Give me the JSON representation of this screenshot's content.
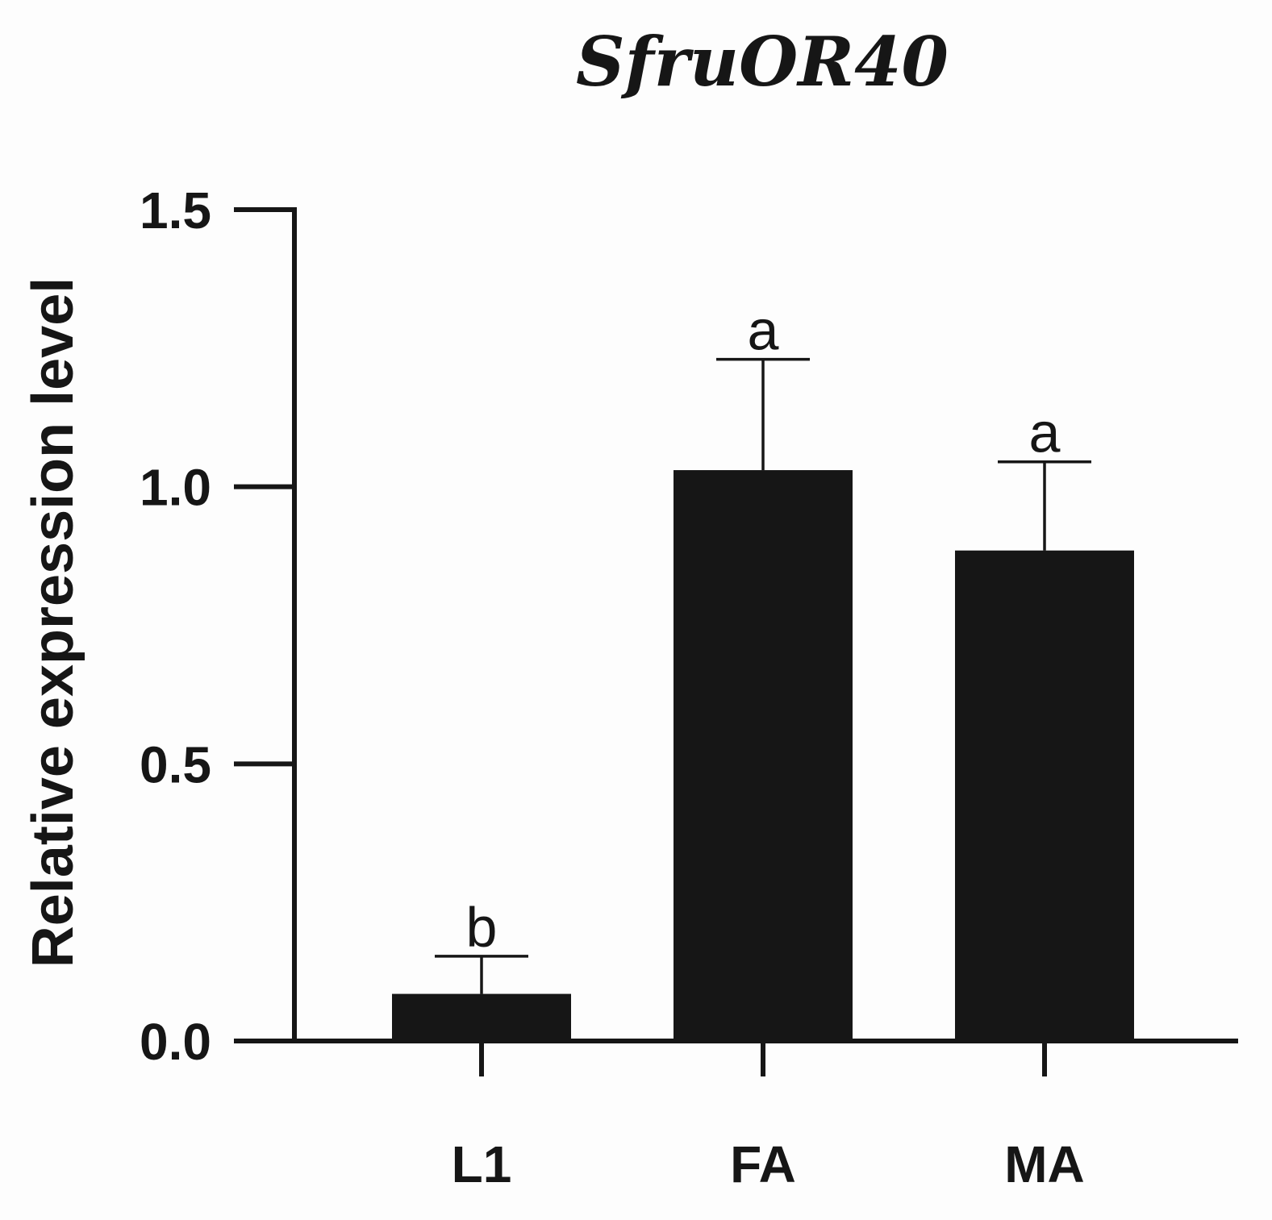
{
  "chart_data": {
    "type": "bar",
    "title": "SfruOR40",
    "xlabel": "",
    "ylabel": "Relative expression level",
    "categories": [
      "L1",
      "FA",
      "MA"
    ],
    "values": [
      0.085,
      1.03,
      0.885
    ],
    "errors": [
      0.068,
      0.2,
      0.16
    ],
    "significance": [
      "b",
      "a",
      "a"
    ],
    "ylim": [
      0,
      1.5
    ],
    "yticks": [
      0.0,
      0.5,
      1.0,
      1.5
    ],
    "ytick_labels": [
      "0.0",
      "0.5",
      "1.0",
      "1.5"
    ],
    "grid": false,
    "legend": null,
    "bar_color": "#161616"
  }
}
